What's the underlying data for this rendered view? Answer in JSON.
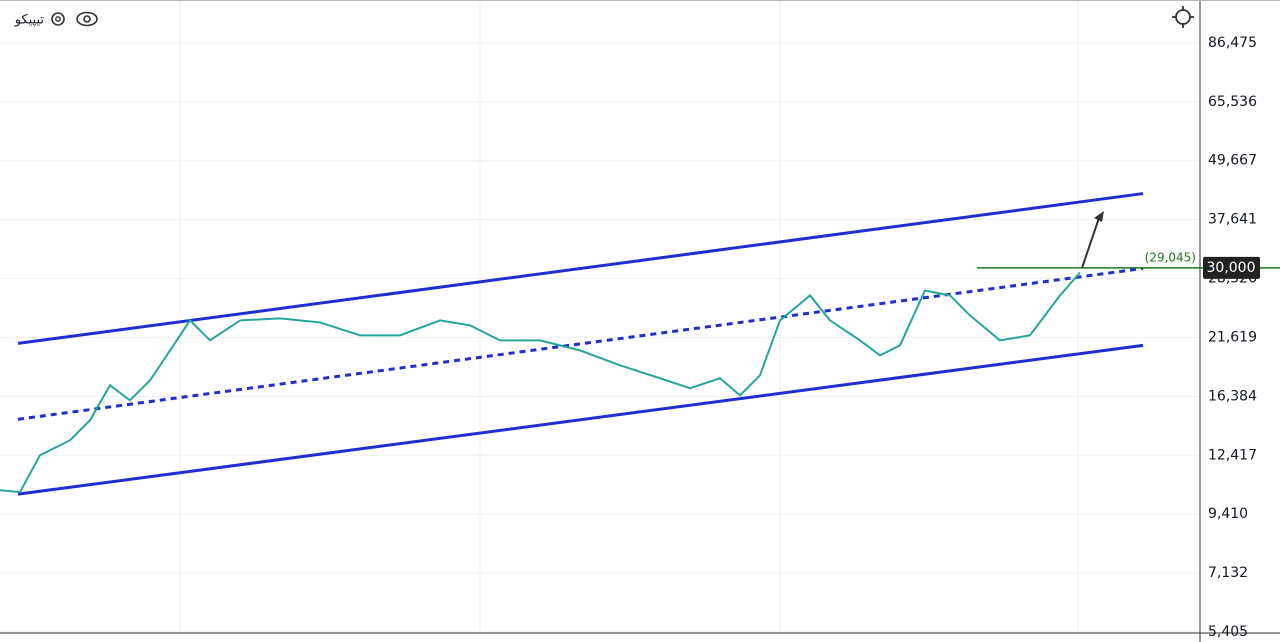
{
  "chart_data": {
    "type": "line",
    "title": "تیپیکو",
    "x": [
      0,
      1.67,
      3.33,
      5.83,
      7.5,
      9.17,
      10.83,
      12.5,
      14.17,
      15.83,
      17.5,
      20,
      23.33,
      26.67,
      30,
      33.33,
      36.67,
      39.17,
      41.67,
      45,
      48.33,
      51.67,
      55,
      57.5,
      60,
      61.67,
      63.33,
      65,
      67.5,
      69.17,
      71.67,
      73.33,
      75,
      77.08,
      79.17,
      80.83,
      83.33,
      85.83,
      88.33,
      90
    ],
    "series": [
      {
        "color": "#26a69a",
        "values": [
          10530,
          10440,
          12420,
          13320,
          14640,
          17260,
          16080,
          17660,
          20340,
          23420,
          21320,
          23420,
          23650,
          23200,
          21830,
          21830,
          23420,
          22880,
          21320,
          21320,
          20340,
          18960,
          17840,
          17020,
          17840,
          16460,
          18090,
          23420,
          26340,
          23420,
          21320,
          19870,
          20830,
          26960,
          26340,
          23980,
          21320,
          21830,
          26340,
          29350
        ]
      }
    ],
    "trendlines": [
      {
        "x": [
          1.5,
          95.25
        ],
        "values": [
          21020,
          42550
        ],
        "color": "#1f2ed1",
        "dashed": false
      },
      {
        "x": [
          1.5,
          95.25
        ],
        "values": [
          14710,
          29910
        ],
        "color": "#1f2ed1",
        "dashed": true
      },
      {
        "x": [
          1.5,
          95.25
        ],
        "values": [
          10340,
          20830
        ],
        "color": "#1f2ed1",
        "dashed": false
      }
    ],
    "hline": {
      "x": 81.4,
      "value": 30000,
      "color": "#1b7a1b",
      "label": "30,000",
      "annotation": "(29,045)"
    },
    "xlim": [
      0,
      100
    ],
    "ylim": [
      5405,
      105800
    ],
    "log_y": true,
    "yticks": [
      {
        "value": 5405,
        "label": "5,405"
      },
      {
        "value": 7132,
        "label": "7,132"
      },
      {
        "value": 9410,
        "label": "9,410"
      },
      {
        "value": 12417,
        "label": "12,417"
      },
      {
        "value": 16384,
        "label": "16,384"
      },
      {
        "value": 21619,
        "label": "21,619"
      },
      {
        "value": 28526,
        "label": "28,526"
      },
      {
        "value": 37641,
        "label": "37,641"
      },
      {
        "value": 49667,
        "label": "49,667"
      },
      {
        "value": 65536,
        "label": "65,536"
      },
      {
        "value": 86475,
        "label": "86,475"
      }
    ],
    "grid": true
  }
}
